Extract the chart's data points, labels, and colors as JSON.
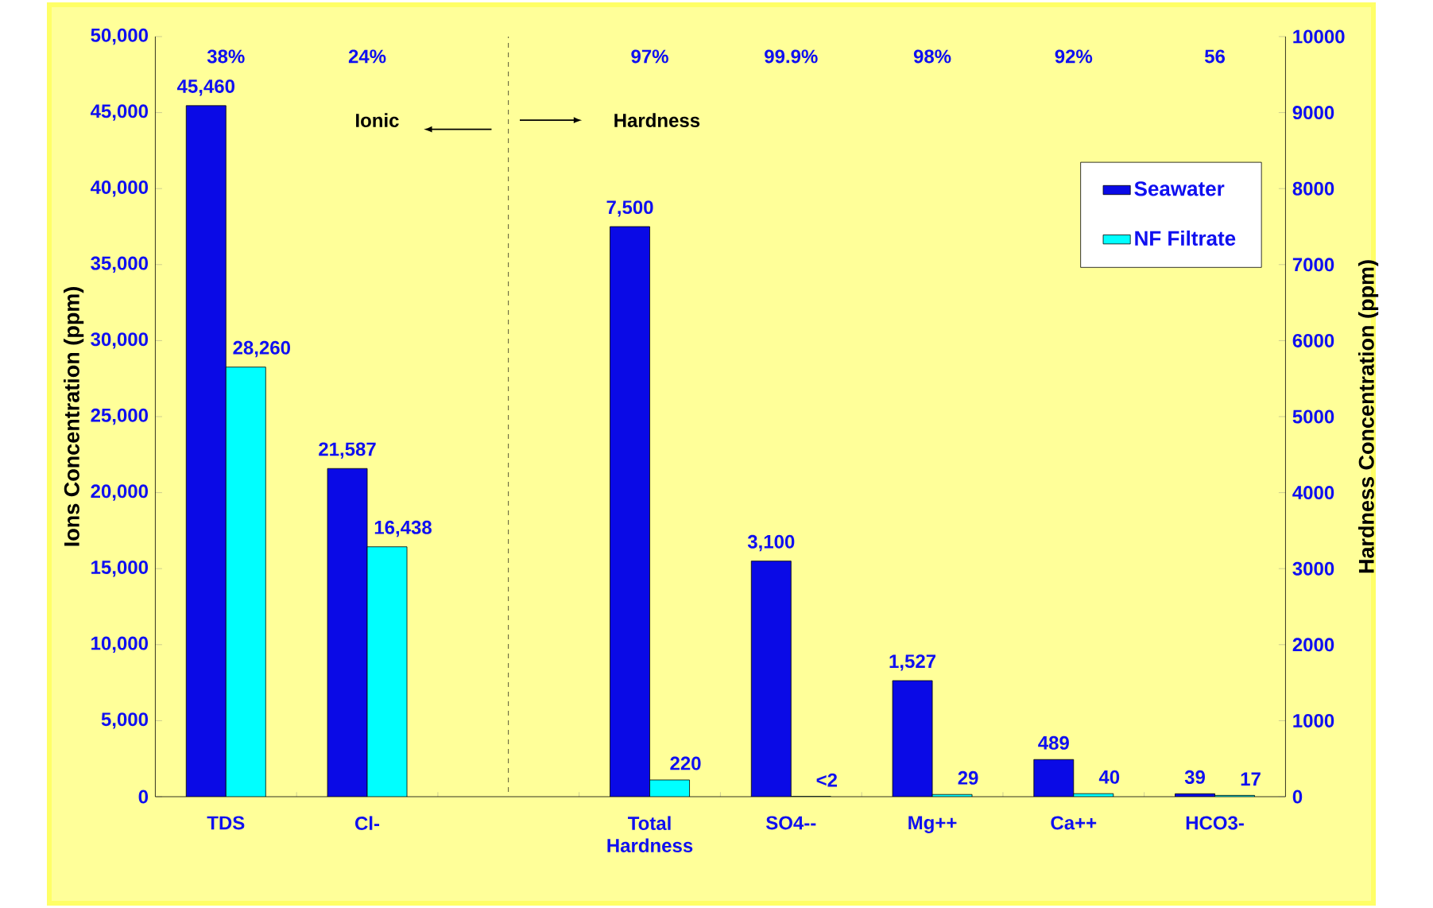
{
  "chart_data": {
    "type": "bar",
    "categories": [
      "TDS",
      "Cl-",
      null,
      "Total Hardness",
      "SO4--",
      "Mg++",
      "Ca++",
      "HCO3-"
    ],
    "series": [
      {
        "name": "Seawater",
        "color": "#0a0ae6",
        "values": [
          45460,
          21587,
          null,
          null,
          null,
          null,
          null,
          null
        ],
        "value_labels": [
          "45,460",
          "21,587",
          null,
          null,
          null,
          null,
          null,
          null
        ]
      },
      {
        "name": "NF Filtrate",
        "color": "#00ffff",
        "values": [
          28260,
          16438,
          null,
          null,
          null,
          null,
          null,
          null
        ],
        "value_labels": [
          "28,260",
          "16,438",
          null,
          null,
          null,
          null,
          null,
          null
        ]
      },
      {
        "color": "#0a0ae6",
        "axis": "y2",
        "values": [
          null,
          null,
          null,
          7500,
          3100,
          1527,
          489,
          39
        ],
        "value_labels": [
          null,
          null,
          null,
          "7,500",
          "3,100",
          "1,527",
          "489",
          "39"
        ]
      },
      {
        "color": "#00ffff",
        "axis": "y2",
        "values": [
          null,
          null,
          null,
          220,
          2,
          29,
          40,
          17
        ],
        "value_labels": [
          null,
          null,
          null,
          "220",
          "<2",
          "29",
          "40",
          "17"
        ]
      }
    ],
    "ylabel": "Ions Concentration (ppm)",
    "y2label": "Hardness Concentration (ppm)",
    "ylim": [
      0,
      50000
    ],
    "yticks": [
      0,
      {
        "value": 5000,
        "label": "5,000"
      },
      {
        "value": 10000,
        "label": "10,000"
      },
      {
        "value": 15000,
        "label": "15,000"
      },
      {
        "value": 20000,
        "label": "20,000"
      },
      {
        "value": 25000,
        "label": "25,000"
      },
      {
        "value": 30000,
        "label": "30,000"
      },
      {
        "value": 35000,
        "label": "35,000"
      },
      {
        "value": 40000,
        "label": "40,000"
      },
      {
        "value": 45000,
        "label": "45,000"
      },
      {
        "value": 50000,
        "label": "50,000"
      }
    ],
    "y2lim": [
      0,
      10000
    ],
    "y2ticks": [
      0,
      1000,
      2000,
      3000,
      4000,
      5000,
      6000,
      7000,
      8000,
      9000,
      10000
    ],
    "annotations": [
      "38%",
      "24%",
      "97%",
      "99.9%",
      "98%",
      "92%",
      "56",
      "Ionic",
      "Hardness"
    ],
    "ref_lines": [
      {
        "axis": "x",
        "line_style": "dashed"
      }
    ],
    "legend": "top right"
  }
}
